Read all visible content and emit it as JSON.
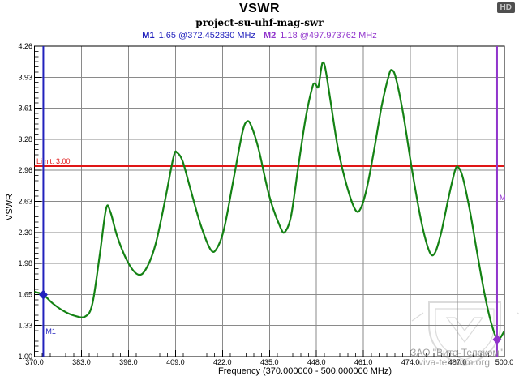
{
  "window": {
    "title": "VSWR",
    "subtitle": "project-su-uhf-mag-swr",
    "hd_badge": "HD"
  },
  "markers_readout": {
    "m1_label": "M1",
    "m1_value": "1.65 @372.452830 MHz",
    "m2_label": "M2",
    "m2_value": "1.18 @497.973762 MHz"
  },
  "watermark": {
    "line1": "ЗАО \"Вита-Телеком\"",
    "line2": "viva-telecom.org"
  },
  "colors": {
    "curve": "#148214",
    "limit": "#e01616",
    "marker1": "#2222bd",
    "marker2": "#9135cc",
    "grid": "#8a8a8a",
    "minor_tick": "#333333",
    "axis": "#000000",
    "watermark": "#8f8f8f"
  },
  "chart_data": {
    "type": "line",
    "title": "VSWR",
    "xlabel": "Frequency (370.000000 - 500.000000 MHz)",
    "ylabel": "VSWR",
    "xlim": [
      370,
      500
    ],
    "ylim": [
      1.0,
      4.26
    ],
    "x_tick_labels": [
      "370.0",
      "383.0",
      "396.0",
      "409.0",
      "422.0",
      "435.0",
      "448.0",
      "461.0",
      "474.0",
      "487.0",
      "500.0"
    ],
    "y_tick_labels": [
      "1.00",
      "1.33",
      "1.65",
      "1.98",
      "2.30",
      "2.63",
      "2.96",
      "3.28",
      "3.61",
      "3.93",
      "4.26"
    ],
    "minor_per_major": 6,
    "grid": true,
    "legend_position": "none",
    "limit_line": {
      "value": 3.0,
      "label": "Limit: 3.00"
    },
    "series": [
      {
        "name": "VSWR",
        "points": [
          [
            370.0,
            1.68
          ],
          [
            372.45,
            1.65
          ],
          [
            375.0,
            1.56
          ],
          [
            378.0,
            1.48
          ],
          [
            381.0,
            1.43
          ],
          [
            384.0,
            1.42
          ],
          [
            386.0,
            1.55
          ],
          [
            388.0,
            2.05
          ],
          [
            389.8,
            2.55
          ],
          [
            391.0,
            2.52
          ],
          [
            393.0,
            2.25
          ],
          [
            396.0,
            1.98
          ],
          [
            398.8,
            1.86
          ],
          [
            401.0,
            1.93
          ],
          [
            403.5,
            2.18
          ],
          [
            406.0,
            2.62
          ],
          [
            408.5,
            3.1
          ],
          [
            409.5,
            3.14
          ],
          [
            411.0,
            3.05
          ],
          [
            413.0,
            2.78
          ],
          [
            416.0,
            2.38
          ],
          [
            418.8,
            2.12
          ],
          [
            420.5,
            2.14
          ],
          [
            422.5,
            2.35
          ],
          [
            425.0,
            2.85
          ],
          [
            427.5,
            3.35
          ],
          [
            428.8,
            3.47
          ],
          [
            430.0,
            3.42
          ],
          [
            432.0,
            3.18
          ],
          [
            435.0,
            2.68
          ],
          [
            438.0,
            2.36
          ],
          [
            439.3,
            2.31
          ],
          [
            441.0,
            2.48
          ],
          [
            443.0,
            3.0
          ],
          [
            445.0,
            3.5
          ],
          [
            446.8,
            3.82
          ],
          [
            447.6,
            3.87
          ],
          [
            448.5,
            3.83
          ],
          [
            449.3,
            4.02
          ],
          [
            449.8,
            4.09
          ],
          [
            450.5,
            4.02
          ],
          [
            452.0,
            3.66
          ],
          [
            454.0,
            3.18
          ],
          [
            456.5,
            2.78
          ],
          [
            458.8,
            2.54
          ],
          [
            460.3,
            2.56
          ],
          [
            462.0,
            2.78
          ],
          [
            464.0,
            3.18
          ],
          [
            466.0,
            3.62
          ],
          [
            468.0,
            3.95
          ],
          [
            468.9,
            4.01
          ],
          [
            470.0,
            3.92
          ],
          [
            472.0,
            3.55
          ],
          [
            474.5,
            2.95
          ],
          [
            477.0,
            2.42
          ],
          [
            479.3,
            2.1
          ],
          [
            480.8,
            2.09
          ],
          [
            482.5,
            2.3
          ],
          [
            484.5,
            2.66
          ],
          [
            486.3,
            2.95
          ],
          [
            487.2,
            2.99
          ],
          [
            488.5,
            2.88
          ],
          [
            490.5,
            2.52
          ],
          [
            492.5,
            2.08
          ],
          [
            494.5,
            1.66
          ],
          [
            496.3,
            1.36
          ],
          [
            497.97,
            1.18
          ],
          [
            498.9,
            1.2
          ],
          [
            500.0,
            1.27
          ]
        ]
      }
    ],
    "markers": [
      {
        "name": "M1",
        "plot_label": "M1",
        "freq": 372.45283,
        "value": 1.65
      },
      {
        "name": "M2",
        "plot_label": "M",
        "freq": 497.973762,
        "value": 1.18
      }
    ]
  }
}
